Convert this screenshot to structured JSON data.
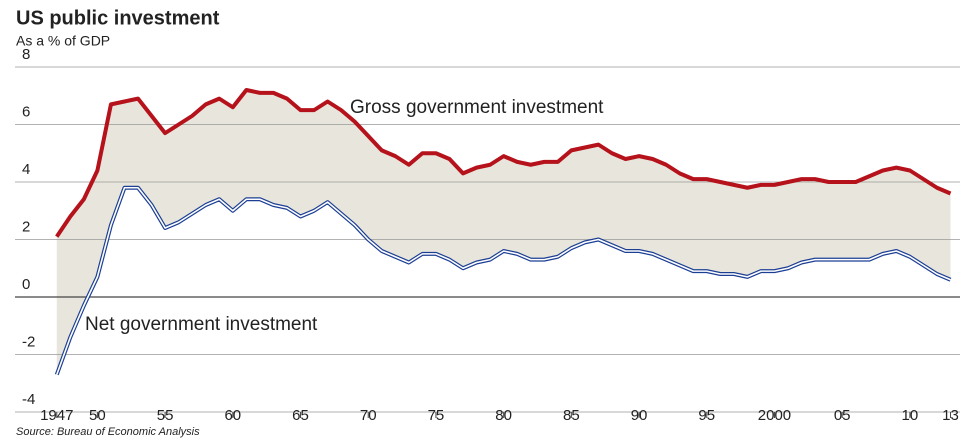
{
  "chart_data": {
    "type": "line",
    "title": "US public investment",
    "subtitle": "As a % of GDP",
    "source": "Source: Bureau of Economic Analysis",
    "annotations": [
      "Gross government investment",
      "Net government investment"
    ],
    "x": [
      1947,
      1948,
      1949,
      1950,
      1951,
      1952,
      1953,
      1954,
      1955,
      1956,
      1957,
      1958,
      1959,
      1960,
      1961,
      1962,
      1963,
      1964,
      1965,
      1966,
      1967,
      1968,
      1969,
      1970,
      1971,
      1972,
      1973,
      1974,
      1975,
      1976,
      1977,
      1978,
      1979,
      1980,
      1981,
      1982,
      1983,
      1984,
      1985,
      1986,
      1987,
      1988,
      1989,
      1990,
      1991,
      1992,
      1993,
      1994,
      1995,
      1996,
      1997,
      1998,
      1999,
      2000,
      2001,
      2002,
      2003,
      2004,
      2005,
      2006,
      2007,
      2008,
      2009,
      2010,
      2011,
      2012,
      2013
    ],
    "series": [
      {
        "name": "Gross government investment",
        "color": "#b5121b",
        "values": [
          2.1,
          2.8,
          3.4,
          4.4,
          6.7,
          6.8,
          6.9,
          6.3,
          5.7,
          6.0,
          6.3,
          6.7,
          6.9,
          6.6,
          7.2,
          7.1,
          7.1,
          6.9,
          6.5,
          6.5,
          6.8,
          6.5,
          6.1,
          5.6,
          5.1,
          4.9,
          4.6,
          5.0,
          5.0,
          4.8,
          4.3,
          4.5,
          4.6,
          4.9,
          4.7,
          4.6,
          4.7,
          4.7,
          5.1,
          5.2,
          5.3,
          5.0,
          4.8,
          4.9,
          4.8,
          4.6,
          4.3,
          4.1,
          4.1,
          4.0,
          3.9,
          3.8,
          3.9,
          3.9,
          4.0,
          4.1,
          4.1,
          4.0,
          4.0,
          4.0,
          4.2,
          4.4,
          4.5,
          4.4,
          4.1,
          3.8,
          3.6
        ]
      },
      {
        "name": "Net government investment",
        "color": "#1c3f94",
        "values": [
          -2.7,
          -1.4,
          -0.3,
          0.7,
          2.5,
          3.8,
          3.8,
          3.2,
          2.4,
          2.6,
          2.9,
          3.2,
          3.4,
          3.0,
          3.4,
          3.4,
          3.2,
          3.1,
          2.8,
          3.0,
          3.3,
          2.9,
          2.5,
          2.0,
          1.6,
          1.4,
          1.2,
          1.5,
          1.5,
          1.3,
          1.0,
          1.2,
          1.3,
          1.6,
          1.5,
          1.3,
          1.3,
          1.4,
          1.7,
          1.9,
          2.0,
          1.8,
          1.6,
          1.6,
          1.5,
          1.3,
          1.1,
          0.9,
          0.9,
          0.8,
          0.8,
          0.7,
          0.9,
          0.9,
          1.0,
          1.2,
          1.3,
          1.3,
          1.3,
          1.3,
          1.3,
          1.5,
          1.6,
          1.4,
          1.1,
          0.8,
          0.6
        ]
      }
    ],
    "xlim": [
      1946.5,
      2013.7
    ],
    "xticks": [
      {
        "value": 1947,
        "label": "1947"
      },
      {
        "value": 1950,
        "label": "50"
      },
      {
        "value": 1955,
        "label": "55"
      },
      {
        "value": 1960,
        "label": "60"
      },
      {
        "value": 1965,
        "label": "65"
      },
      {
        "value": 1970,
        "label": "70"
      },
      {
        "value": 1975,
        "label": "75"
      },
      {
        "value": 1980,
        "label": "80"
      },
      {
        "value": 1985,
        "label": "85"
      },
      {
        "value": 1990,
        "label": "90"
      },
      {
        "value": 1995,
        "label": "95"
      },
      {
        "value": 2000,
        "label": "2000"
      },
      {
        "value": 2005,
        "label": "05"
      },
      {
        "value": 2010,
        "label": "10"
      },
      {
        "value": 2013,
        "label": "13"
      }
    ],
    "ylim": [
      -4,
      8
    ],
    "yticks": [
      -4,
      -2,
      0,
      2,
      4,
      6,
      8
    ],
    "grid": true,
    "fill_between": "#e8e6dc"
  }
}
